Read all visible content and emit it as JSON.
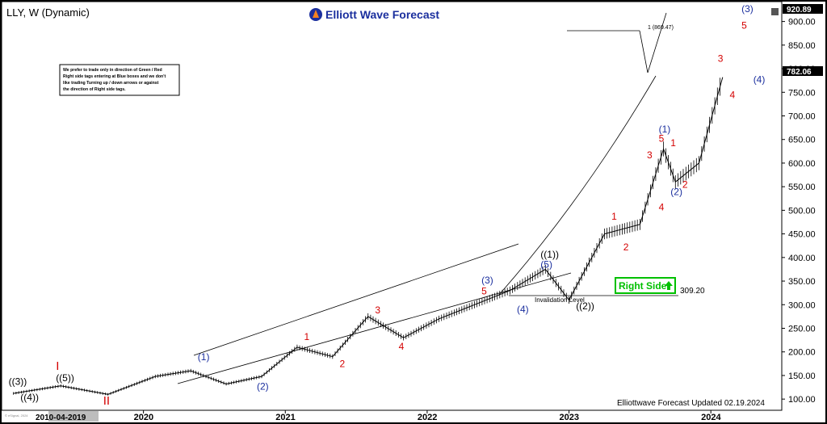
{
  "header": {
    "symbol": "LLY, W (Dynamic)",
    "brand": "Elliott Wave Forecast"
  },
  "note": {
    "lines": [
      "We prefer to trade only in direction of Green / Red",
      "Right side tags entering at Blue boxes and we don't",
      "like trading Turning up / down arrows or against",
      "the direction of Right side tags."
    ]
  },
  "footer": {
    "updated": "Elliottwave Forecast Updated 02.19.2024",
    "watermark": "© eSignal, 2024"
  },
  "right_side": {
    "label": "Right Side",
    "level": "309.20",
    "invalidation": "Invalidation Level",
    "color": "#00c000"
  },
  "target": {
    "label": "1 (869.47)",
    "value": 869.47
  },
  "colors": {
    "price": "#000000",
    "wave_blue": "#1b2f9e",
    "wave_red": "#d40000",
    "wave_black": "#000000",
    "accent_orange": "#f58220"
  },
  "chart_data": {
    "type": "line",
    "ylim": [
      90,
      925
    ],
    "y_ticks": [
      "100.00",
      "150.00",
      "200.00",
      "250.00",
      "300.00",
      "350.00",
      "400.00",
      "450.00",
      "500.00",
      "550.00",
      "600.00",
      "650.00",
      "700.00",
      "750.00",
      "800.00",
      "850.00",
      "900.00"
    ],
    "x_ticks": [
      "2020",
      "2021",
      "2022",
      "2023",
      "2024"
    ],
    "x_first_label": "2010-04-2019",
    "last_price": "782.06",
    "high_price": "920.89",
    "x": [
      "2019-02",
      "2019-06",
      "2019-10",
      "2020-02",
      "2020-05",
      "2020-08",
      "2020-11",
      "2021-02",
      "2021-05",
      "2021-08",
      "2021-11",
      "2022-02",
      "2022-05",
      "2022-08",
      "2022-11",
      "2023-01",
      "2023-04",
      "2023-07",
      "2023-09",
      "2023-10",
      "2023-12",
      "2024-02"
    ],
    "series": [
      {
        "values": [
          112,
          128,
          110,
          148,
          160,
          132,
          148,
          210,
          190,
          275,
          230,
          270,
          300,
          330,
          375,
          310,
          450,
          470,
          630,
          560,
          600,
          782
        ]
      }
    ],
    "wave_labels": [
      {
        "text": "((3))",
        "x": "2019-02",
        "y": 130,
        "color": "black"
      },
      {
        "text": "((4))",
        "x": "2019-03",
        "y": 97,
        "color": "black"
      },
      {
        "text": "((5))",
        "x": "2019-06",
        "y": 138,
        "color": "black"
      },
      {
        "text": "I",
        "x": "2019-06",
        "y": 162,
        "color": "red"
      },
      {
        "text": "II",
        "x": "2019-10",
        "y": 88,
        "color": "red"
      },
      {
        "text": "(1)",
        "x": "2020-06",
        "y": 182,
        "color": "blue"
      },
      {
        "text": "(2)",
        "x": "2020-11",
        "y": 120,
        "color": "blue"
      },
      {
        "text": "1",
        "x": "2021-03",
        "y": 225,
        "color": "red"
      },
      {
        "text": "2",
        "x": "2021-06",
        "y": 168,
        "color": "red"
      },
      {
        "text": "3",
        "x": "2021-09",
        "y": 282,
        "color": "red"
      },
      {
        "text": "4",
        "x": "2021-11",
        "y": 205,
        "color": "red"
      },
      {
        "text": "(3)",
        "x": "2022-06",
        "y": 345,
        "color": "blue"
      },
      {
        "text": "5",
        "x": "2022-06",
        "y": 322,
        "color": "red"
      },
      {
        "text": "(4)",
        "x": "2022-09",
        "y": 283,
        "color": "blue"
      },
      {
        "text": "((1))",
        "x": "2022-11",
        "y": 400,
        "color": "black"
      },
      {
        "text": "(5)",
        "x": "2022-11",
        "y": 378,
        "color": "blue"
      },
      {
        "text": "((2))",
        "x": "2023-02",
        "y": 290,
        "color": "black"
      },
      {
        "text": "1",
        "x": "2023-05",
        "y": 480,
        "color": "red"
      },
      {
        "text": "2",
        "x": "2023-06",
        "y": 415,
        "color": "red"
      },
      {
        "text": "3",
        "x": "2023-08",
        "y": 610,
        "color": "red"
      },
      {
        "text": "(1)",
        "x": "2023-09",
        "y": 665,
        "color": "blue"
      },
      {
        "text": "5",
        "x": "2023-09",
        "y": 645,
        "color": "red"
      },
      {
        "text": "1",
        "x": "2023-10",
        "y": 636,
        "color": "red"
      },
      {
        "text": "4",
        "x": "2023-09",
        "y": 500,
        "color": "red"
      },
      {
        "text": "(2)",
        "x": "2023-10",
        "y": 532,
        "color": "blue"
      },
      {
        "text": "2",
        "x": "2023-11",
        "y": 548,
        "color": "red"
      },
      {
        "text": "3",
        "x": "2024-02",
        "y": 815,
        "color": "red"
      },
      {
        "text": "4",
        "x": "2024-03",
        "y": 738,
        "color": "red"
      },
      {
        "text": "(3)",
        "x": "2024-04",
        "y": 920,
        "color": "blue"
      },
      {
        "text": "5",
        "x": "2024-04",
        "y": 885,
        "color": "red"
      },
      {
        "text": "(4)",
        "x": "2024-05",
        "y": 770,
        "color": "blue"
      }
    ]
  }
}
